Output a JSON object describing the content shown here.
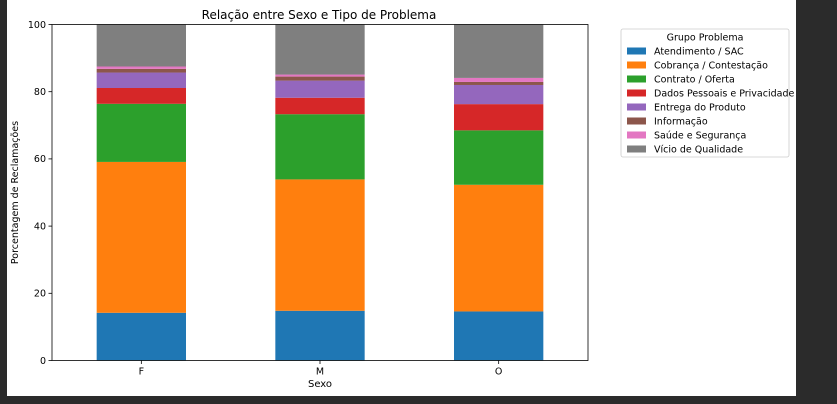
{
  "chart_data": {
    "type": "bar",
    "stacked": true,
    "title": "Relação entre Sexo e Tipo de Problema",
    "xlabel": "Sexo",
    "ylabel": "Porcentagem de Reclamações",
    "categories": [
      "F",
      "M",
      "O"
    ],
    "ylim": [
      0,
      100
    ],
    "yticks": [
      0,
      20,
      40,
      60,
      80,
      100
    ],
    "legend_title": "Grupo Problema",
    "legend_position": "right, outside plot",
    "grid": false,
    "series": [
      {
        "name": "Atendimento / SAC",
        "color": "#1f77b4",
        "values": [
          14.2,
          14.8,
          14.6
        ]
      },
      {
        "name": "Cobrança / Contestação",
        "color": "#ff7f0e",
        "values": [
          44.9,
          39.1,
          37.7
        ]
      },
      {
        "name": "Contrato / Oferta",
        "color": "#2ca02c",
        "values": [
          17.3,
          19.4,
          16.2
        ]
      },
      {
        "name": "Dados Pessoais e Privacidade",
        "color": "#d62728",
        "values": [
          4.7,
          4.9,
          7.8
        ]
      },
      {
        "name": "Entrega do Produto",
        "color": "#9467bd",
        "values": [
          4.6,
          5.1,
          5.7
        ]
      },
      {
        "name": "Informação",
        "color": "#8c564b",
        "values": [
          1.1,
          1.2,
          0.9
        ]
      },
      {
        "name": "Saúde e Segurança",
        "color": "#e377c2",
        "values": [
          0.7,
          0.6,
          1.2
        ]
      },
      {
        "name": "Vício de Qualidade",
        "color": "#7f7f7f",
        "values": [
          12.5,
          14.9,
          15.9
        ]
      }
    ]
  }
}
